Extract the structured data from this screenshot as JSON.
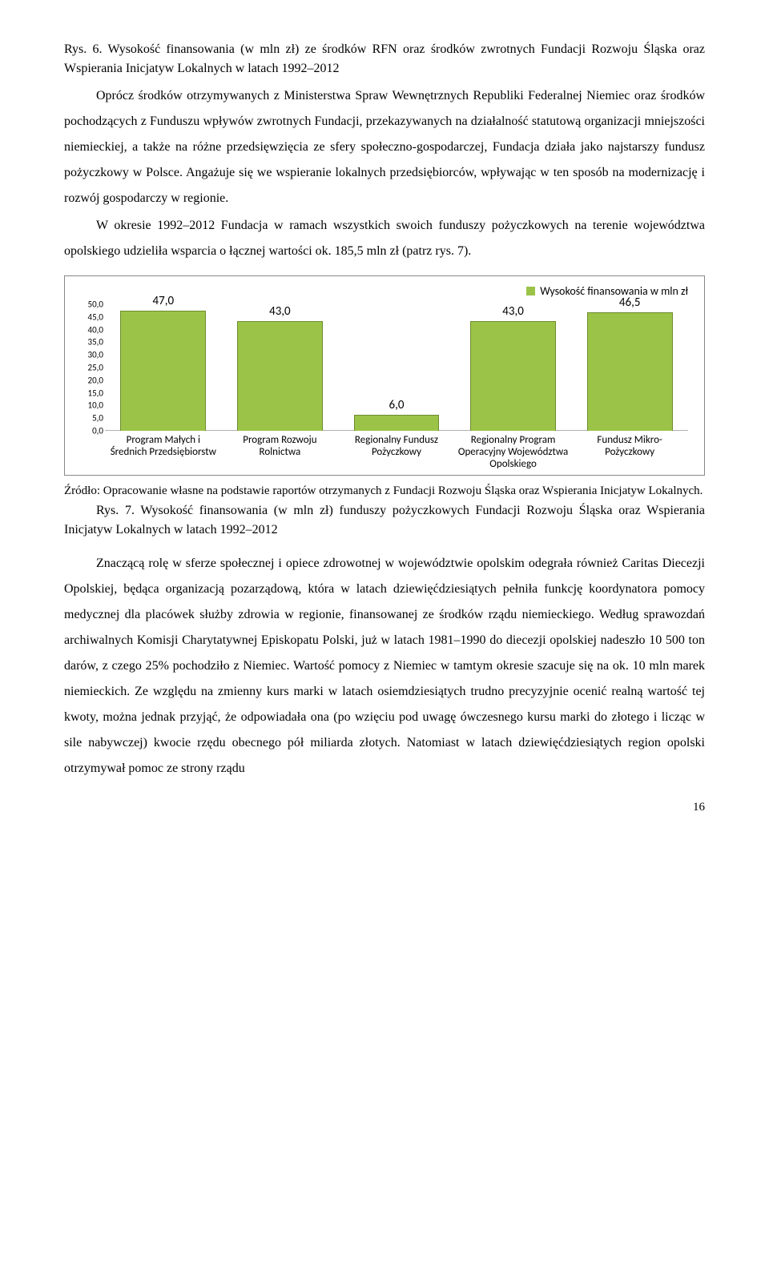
{
  "fig6": {
    "caption": "Rys. 6. Wysokość finansowania (w mln zł) ze środków RFN oraz środków zwrotnych Fundacji Rozwoju Śląska oraz Wspierania Inicjatyw Lokalnych w latach 1992–2012",
    "sub": "Oprócz środków otrzymywanych z Ministerstwa Spraw Wewnętrznych Republiki Federalnej Niemiec oraz środków pochodzących z Funduszu wpływów zwrotnych Fundacji, przekazywanych na działalność statutową organizacji mniejszości niemieckiej, a także na różne przedsięwzięcia ze sfery społeczno-gospodarczej, Fundacja działa jako najstarszy fundusz pożyczkowy w Polsce. Angażuje się we wspieranie lokalnych przedsiębiorców, wpływając w ten sposób na modernizację i rozwój gospodarczy w regionie."
  },
  "para2": "W okresie 1992–2012 Fundacja w ramach wszystkich swoich funduszy pożyczkowych na terenie województwa opolskiego udzieliła wsparcia o łącznej wartości ok. 185,5 mln zł (patrz rys. 7).",
  "chart": {
    "type": "bar",
    "legend_label": "Wysokość finansowania w mln zł",
    "categories": [
      "Program Małych i Średnich Przedsiębiorstw",
      "Program Rozwoju Rolnictwa",
      "Regionalny Fundusz Pożyczkowy",
      "Regionalny Program Operacyjny Województwa Opolskiego",
      "Fundusz Mikro-Pożyczkowy"
    ],
    "values": [
      47.0,
      43.0,
      6.0,
      43.0,
      46.5
    ],
    "value_labels": [
      "47,0",
      "43,0",
      "6,0",
      "43,0",
      "46,5"
    ],
    "bar_color": "#9bc348",
    "bar_border": "#6e8c2e",
    "y_ticks": [
      "0,0",
      "5,0",
      "10,0",
      "15,0",
      "20,0",
      "25,0",
      "30,0",
      "35,0",
      "40,0",
      "45,0",
      "50,0"
    ],
    "ylim": [
      0,
      50
    ],
    "background_color": "#ffffff",
    "border_color": "#888888",
    "label_font": "Calibri",
    "label_fontsize": 13,
    "value_fontsize": 15,
    "legend_swatch_color": "#9bc348"
  },
  "source": "Źródło: Opracowanie własne na podstawie raportów otrzymanych z Fundacji Rozwoju Śląska oraz Wspierania Inicjatyw Lokalnych.",
  "fig7_caption": "Rys. 7. Wysokość finansowania (w mln zł) funduszy pożyczkowych Fundacji Rozwoju Śląska oraz Wspierania Inicjatyw Lokalnych w latach 1992–2012",
  "para3": "Znaczącą rolę w sferze społecznej i opiece zdrowotnej w województwie opolskim odegrała również Caritas Diecezji Opolskiej, będąca organizacją pozarządową, która w latach dziewięćdziesiątych pełniła funkcję koordynatora pomocy medycznej dla placówek służby zdrowia w regionie, finansowanej ze środków rządu niemieckiego. Według sprawozdań archiwalnych Komisji Charytatywnej Episkopatu Polski, już w latach 1981–1990 do diecezji opolskiej nadeszło 10 500 ton darów, z czego 25% pochodziło z Niemiec. Wartość pomocy z Niemiec w tamtym okresie szacuje się na ok. 10 mln marek niemieckich. Ze względu na zmienny kurs marki w latach osiemdziesiątych trudno precyzyjnie ocenić realną wartość tej kwoty, można jednak przyjąć, że odpowiadała ona (po wzięciu pod uwagę ówczesnego kursu marki do złotego i licząc w sile nabywczej) kwocie rzędu obecnego pół miliarda złotych. Natomiast w latach dziewięćdziesiątych region opolski otrzymywał pomoc ze strony rządu",
  "page_number": "16"
}
